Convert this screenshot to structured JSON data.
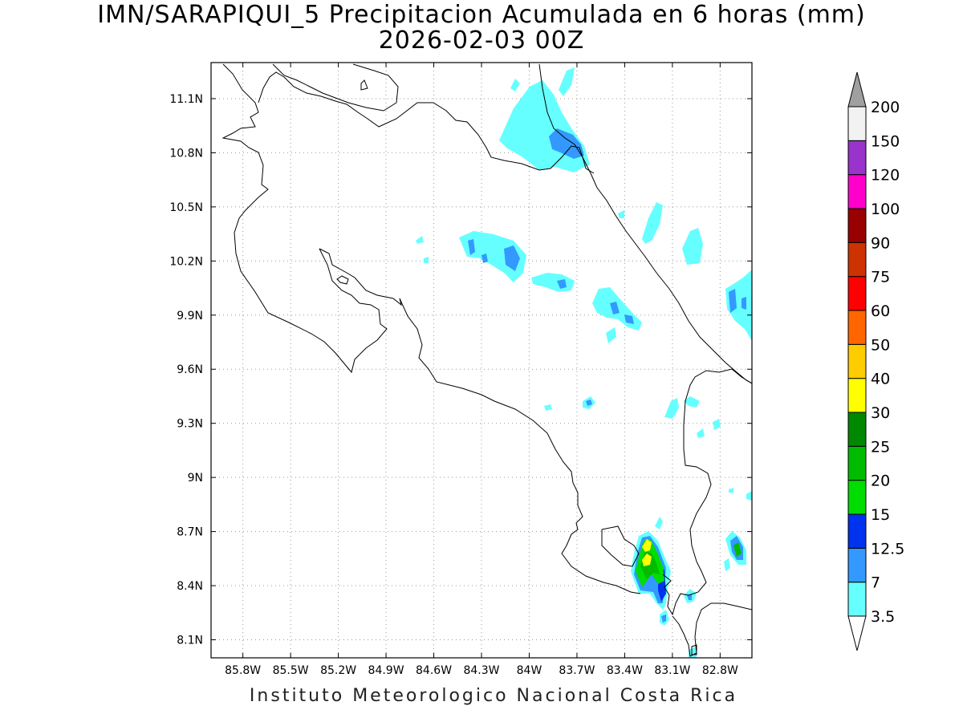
{
  "title": {
    "line1": "IMN/SARAPIQUI_5 Precipitacion Acumulada en 6 horas (mm)",
    "line2": "2026-02-03 00Z"
  },
  "credit": "Instituto Meteorologico Nacional Costa Rica",
  "map": {
    "lon_range": [
      -86.0,
      -82.6
    ],
    "lat_range": [
      8.0,
      11.3
    ],
    "grid_lines": "dotted",
    "lon_ticks": [
      "85.8W",
      "85.5W",
      "85.2W",
      "84.9W",
      "84.6W",
      "84.3W",
      "84W",
      "83.7W",
      "83.4W",
      "83.1W",
      "82.8W"
    ],
    "lat_ticks": [
      "11.1N",
      "10.8N",
      "10.5N",
      "10.2N",
      "9.9N",
      "9.6N",
      "9.3N",
      "9N",
      "8.7N",
      "8.4N",
      "8.1N"
    ]
  },
  "colorbar": {
    "labels": [
      "3.5",
      "7",
      "12.5",
      "15",
      "20",
      "25",
      "30",
      "40",
      "50",
      "60",
      "75",
      "90",
      "100",
      "120",
      "150",
      "200"
    ],
    "colors": [
      "#66ffff",
      "#3399ff",
      "#0033ee",
      "#00dd00",
      "#00bb00",
      "#008800",
      "#ffff00",
      "#ffcc00",
      "#ff6600",
      "#ff0000",
      "#cc3300",
      "#990000",
      "#ff00cc",
      "#9933cc",
      "#f2f2f2"
    ],
    "over_color": "#a0a0a0",
    "under_color": "#ffffff"
  }
}
